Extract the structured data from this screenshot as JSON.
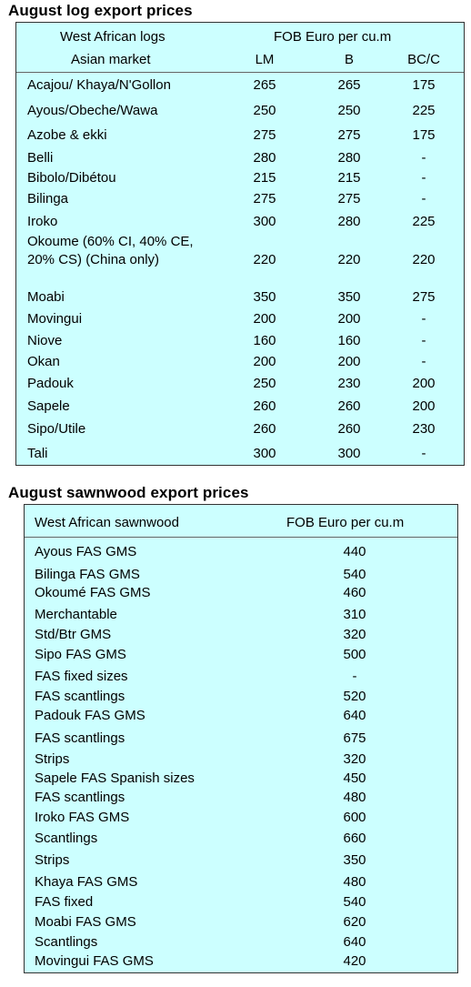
{
  "logs": {
    "title": "August log export prices",
    "header_group": "West African logs",
    "header_market": "Asian market",
    "header_unit": "FOB Euro per cu.m",
    "columns": [
      "LM",
      "B",
      "BC/C"
    ],
    "rows": [
      {
        "name": "Acajou/ Khaya/N'Gollon",
        "lm": "265",
        "b": "265",
        "bcc": "175"
      },
      {
        "name": "Ayous/Obeche/Wawa",
        "lm": "250",
        "b": "250",
        "bcc": "225"
      },
      {
        "name": "Azobe & ekki",
        "lm": "275",
        "b": "275",
        "bcc": "175"
      },
      {
        "name": "Belli",
        "lm": "280",
        "b": "280",
        "bcc": "-"
      },
      {
        "name": "Bibolo/Dibétou",
        "lm": "215",
        "b": "215",
        "bcc": "-"
      },
      {
        "name": "Bilinga",
        "lm": "275",
        "b": "275",
        "bcc": "-"
      },
      {
        "name": "Iroko",
        "lm": "300",
        "b": "280",
        "bcc": "225"
      },
      {
        "name": "Okoume (60% CI, 40% CE, 20% CS) (China only)",
        "lm": "220",
        "b": "220",
        "bcc": "220"
      },
      {
        "name": "Moabi",
        "lm": "350",
        "b": "350",
        "bcc": "275"
      },
      {
        "name": "Movingui",
        "lm": "200",
        "b": "200",
        "bcc": "-"
      },
      {
        "name": "Niove",
        "lm": "160",
        "b": "160",
        "bcc": "-"
      },
      {
        "name": "Okan",
        "lm": "200",
        "b": "200",
        "bcc": "-"
      },
      {
        "name": "Padouk",
        "lm": "250",
        "b": "230",
        "bcc": "200"
      },
      {
        "name": "Sapele",
        "lm": "260",
        "b": "260",
        "bcc": "200"
      },
      {
        "name": "Sipo/Utile",
        "lm": "260",
        "b": "260",
        "bcc": "230"
      },
      {
        "name": "Tali",
        "lm": "300",
        "b": "300",
        "bcc": "-"
      }
    ]
  },
  "sawnwood": {
    "title": "August sawnwood export prices",
    "header_group": "West African sawnwood",
    "header_unit": "FOB Euro per cu.m",
    "rows": [
      {
        "name": "Ayous FAS GMS",
        "price": "440"
      },
      {
        "name": "Bilinga FAS GMS",
        "price": "540"
      },
      {
        "name": "Okoumé FAS GMS",
        "price": "460"
      },
      {
        "name": "Merchantable",
        "price": "310"
      },
      {
        "name": "Std/Btr GMS",
        "price": "320"
      },
      {
        "name": "Sipo FAS GMS",
        "price": "500"
      },
      {
        "name": "FAS fixed sizes",
        "price": "-"
      },
      {
        "name": "FAS scantlings",
        "price": "520"
      },
      {
        "name": "Padouk FAS GMS",
        "price": "640"
      },
      {
        "name": "FAS scantlings",
        "price": "675"
      },
      {
        "name": "Strips",
        "price": "320"
      },
      {
        "name": "Sapele FAS Spanish sizes",
        "price": "450"
      },
      {
        "name": "FAS scantlings",
        "price": "480"
      },
      {
        "name": "Iroko FAS GMS",
        "price": "600"
      },
      {
        "name": "Scantlings",
        "price": "660"
      },
      {
        "name": "Strips",
        "price": "350"
      },
      {
        "name": "Khaya FAS GMS",
        "price": "480"
      },
      {
        "name": "FAS fixed",
        "price": "540"
      },
      {
        "name": "Moabi FAS GMS",
        "price": "620"
      },
      {
        "name": "Scantlings",
        "price": "640"
      },
      {
        "name": "Movingui FAS GMS",
        "price": "420"
      }
    ]
  }
}
